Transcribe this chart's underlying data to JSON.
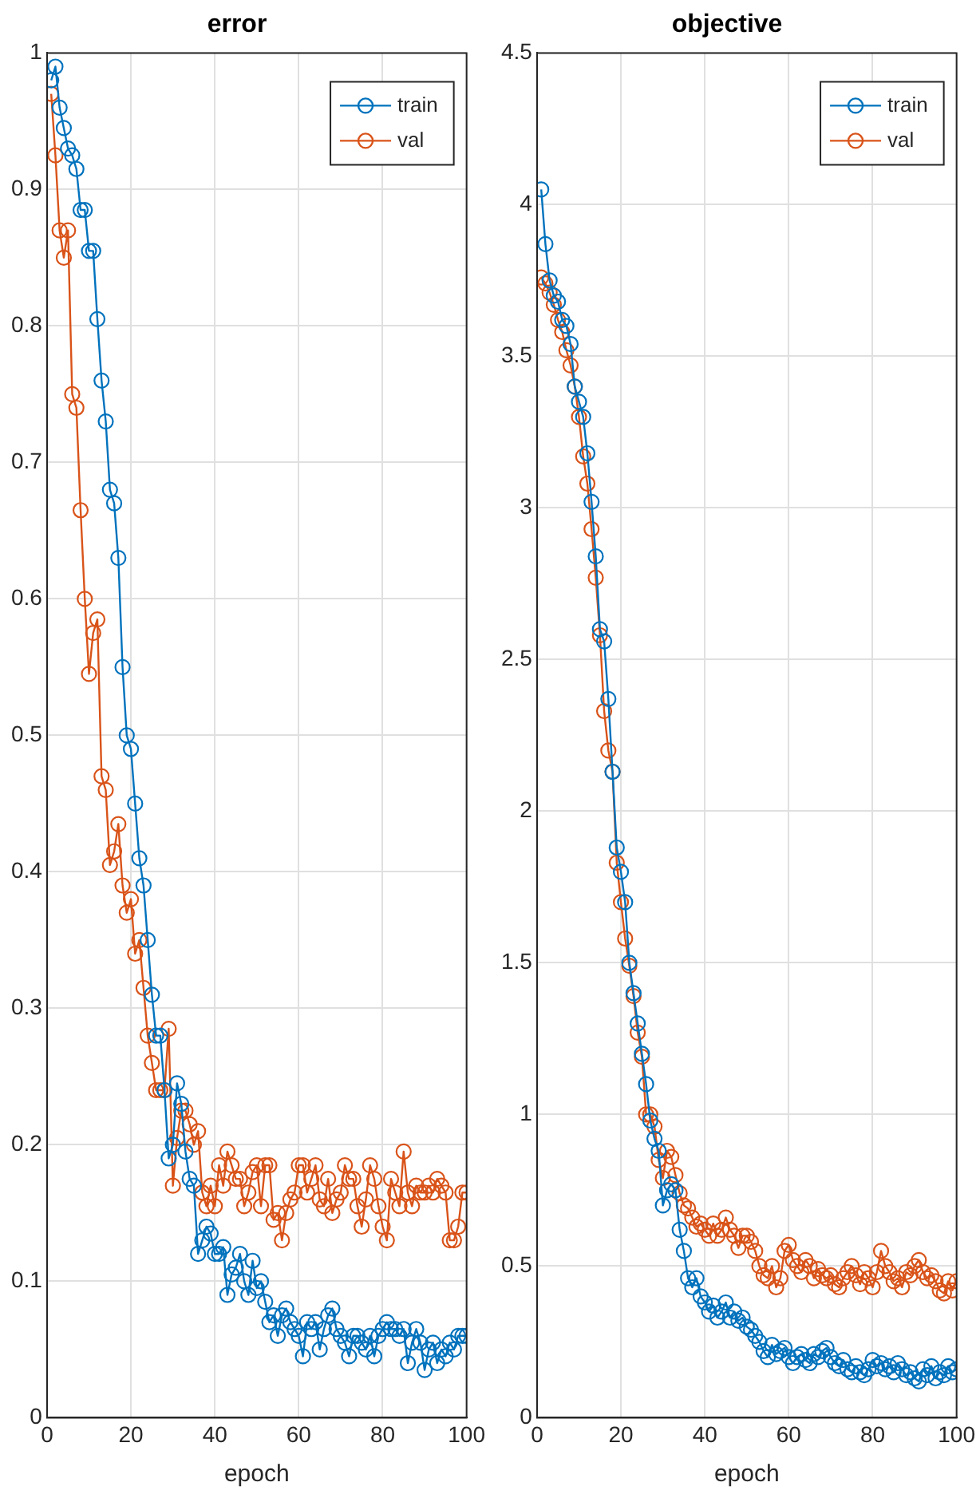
{
  "chart_data": [
    {
      "type": "line",
      "title": "error",
      "xlabel": "epoch",
      "x": [
        1,
        2,
        3,
        4,
        5,
        6,
        7,
        8,
        9,
        10,
        11,
        12,
        13,
        14,
        15,
        16,
        17,
        18,
        19,
        20,
        21,
        22,
        23,
        24,
        25,
        26,
        27,
        28,
        29,
        30,
        31,
        32,
        33,
        34,
        35,
        36,
        37,
        38,
        39,
        40,
        41,
        42,
        43,
        44,
        45,
        46,
        47,
        48,
        49,
        50,
        51,
        52,
        53,
        54,
        55,
        56,
        57,
        58,
        59,
        60,
        61,
        62,
        63,
        64,
        65,
        66,
        67,
        68,
        69,
        70,
        71,
        72,
        73,
        74,
        75,
        76,
        77,
        78,
        79,
        80,
        81,
        82,
        83,
        84,
        85,
        86,
        87,
        88,
        89,
        90,
        91,
        92,
        93,
        94,
        95,
        96,
        97,
        98,
        99,
        100
      ],
      "series": [
        {
          "name": "train",
          "color": "#0072bd",
          "values": [
            0.98,
            0.99,
            0.96,
            0.945,
            0.93,
            0.925,
            0.915,
            0.885,
            0.885,
            0.855,
            0.855,
            0.805,
            0.76,
            0.73,
            0.68,
            0.67,
            0.63,
            0.55,
            0.5,
            0.49,
            0.45,
            0.41,
            0.39,
            0.35,
            0.31,
            0.28,
            0.28,
            0.24,
            0.19,
            0.2,
            0.245,
            0.23,
            0.195,
            0.175,
            0.17,
            0.12,
            0.13,
            0.14,
            0.135,
            0.12,
            0.12,
            0.125,
            0.09,
            0.105,
            0.11,
            0.12,
            0.1,
            0.09,
            0.115,
            0.095,
            0.1,
            0.085,
            0.07,
            0.075,
            0.06,
            0.075,
            0.08,
            0.07,
            0.065,
            0.06,
            0.045,
            0.07,
            0.065,
            0.07,
            0.05,
            0.065,
            0.075,
            0.08,
            0.065,
            0.06,
            0.055,
            0.045,
            0.06,
            0.06,
            0.055,
            0.05,
            0.06,
            0.045,
            0.06,
            0.065,
            0.07,
            0.065,
            0.065,
            0.06,
            0.065,
            0.04,
            0.055,
            0.065,
            0.055,
            0.035,
            0.05,
            0.055,
            0.04,
            0.05,
            0.045,
            0.055,
            0.05,
            0.06,
            0.06,
            0.06
          ]
        },
        {
          "name": "val",
          "color": "#d95319",
          "values": [
            0.97,
            0.925,
            0.87,
            0.85,
            0.87,
            0.75,
            0.74,
            0.665,
            0.6,
            0.545,
            0.575,
            0.585,
            0.47,
            0.46,
            0.405,
            0.415,
            0.435,
            0.39,
            0.37,
            0.38,
            0.34,
            0.35,
            0.315,
            0.28,
            0.26,
            0.24,
            0.24,
            0.24,
            0.285,
            0.17,
            0.205,
            0.225,
            0.225,
            0.215,
            0.2,
            0.21,
            0.165,
            0.155,
            0.17,
            0.155,
            0.185,
            0.17,
            0.195,
            0.185,
            0.175,
            0.175,
            0.155,
            0.165,
            0.18,
            0.185,
            0.155,
            0.185,
            0.185,
            0.145,
            0.15,
            0.13,
            0.15,
            0.16,
            0.165,
            0.185,
            0.185,
            0.165,
            0.175,
            0.185,
            0.16,
            0.155,
            0.175,
            0.15,
            0.16,
            0.165,
            0.185,
            0.175,
            0.175,
            0.155,
            0.14,
            0.16,
            0.185,
            0.175,
            0.155,
            0.14,
            0.13,
            0.175,
            0.165,
            0.155,
            0.195,
            0.165,
            0.155,
            0.17,
            0.165,
            0.165,
            0.17,
            0.165,
            0.175,
            0.17,
            0.165,
            0.13,
            0.13,
            0.14,
            0.165,
            0.165
          ]
        }
      ],
      "xlim": [
        0,
        100
      ],
      "xticks": [
        0,
        20,
        40,
        60,
        80,
        100
      ],
      "ylim": [
        0,
        1
      ],
      "yticks": [
        0,
        0.1,
        0.2,
        0.3,
        0.4,
        0.5,
        0.6,
        0.7,
        0.8,
        0.9,
        1
      ],
      "grid": true,
      "legend": "top right",
      "marker": "circle"
    },
    {
      "type": "line",
      "title": "objective",
      "xlabel": "epoch",
      "x": [
        1,
        2,
        3,
        4,
        5,
        6,
        7,
        8,
        9,
        10,
        11,
        12,
        13,
        14,
        15,
        16,
        17,
        18,
        19,
        20,
        21,
        22,
        23,
        24,
        25,
        26,
        27,
        28,
        29,
        30,
        31,
        32,
        33,
        34,
        35,
        36,
        37,
        38,
        39,
        40,
        41,
        42,
        43,
        44,
        45,
        46,
        47,
        48,
        49,
        50,
        51,
        52,
        53,
        54,
        55,
        56,
        57,
        58,
        59,
        60,
        61,
        62,
        63,
        64,
        65,
        66,
        67,
        68,
        69,
        70,
        71,
        72,
        73,
        74,
        75,
        76,
        77,
        78,
        79,
        80,
        81,
        82,
        83,
        84,
        85,
        86,
        87,
        88,
        89,
        90,
        91,
        92,
        93,
        94,
        95,
        96,
        97,
        98,
        99,
        100
      ],
      "series": [
        {
          "name": "train",
          "color": "#0072bd",
          "values": [
            4.05,
            3.87,
            3.75,
            3.7,
            3.68,
            3.62,
            3.6,
            3.54,
            3.4,
            3.35,
            3.3,
            3.18,
            3.02,
            2.84,
            2.6,
            2.56,
            2.37,
            2.13,
            1.88,
            1.8,
            1.7,
            1.5,
            1.4,
            1.3,
            1.2,
            1.1,
            0.98,
            0.92,
            0.88,
            0.7,
            0.75,
            0.77,
            0.75,
            0.62,
            0.55,
            0.46,
            0.43,
            0.46,
            0.4,
            0.38,
            0.35,
            0.37,
            0.33,
            0.35,
            0.38,
            0.33,
            0.35,
            0.32,
            0.33,
            0.3,
            0.29,
            0.27,
            0.25,
            0.22,
            0.2,
            0.24,
            0.21,
            0.22,
            0.23,
            0.2,
            0.18,
            0.2,
            0.21,
            0.19,
            0.18,
            0.21,
            0.2,
            0.22,
            0.23,
            0.2,
            0.18,
            0.17,
            0.19,
            0.16,
            0.15,
            0.17,
            0.15,
            0.14,
            0.16,
            0.19,
            0.17,
            0.18,
            0.16,
            0.17,
            0.15,
            0.18,
            0.16,
            0.14,
            0.15,
            0.13,
            0.12,
            0.16,
            0.14,
            0.17,
            0.13,
            0.15,
            0.14,
            0.17,
            0.15,
            0.16
          ]
        },
        {
          "name": "val",
          "color": "#d95319",
          "values": [
            3.76,
            3.74,
            3.71,
            3.67,
            3.62,
            3.58,
            3.52,
            3.47,
            3.4,
            3.3,
            3.17,
            3.08,
            2.93,
            2.77,
            2.58,
            2.33,
            2.2,
            2.13,
            1.83,
            1.7,
            1.58,
            1.49,
            1.39,
            1.27,
            1.19,
            1.0,
            1.0,
            0.96,
            0.85,
            0.79,
            0.88,
            0.86,
            0.8,
            0.74,
            0.7,
            0.69,
            0.66,
            0.63,
            0.64,
            0.62,
            0.6,
            0.64,
            0.6,
            0.62,
            0.66,
            0.62,
            0.6,
            0.56,
            0.6,
            0.6,
            0.58,
            0.55,
            0.5,
            0.47,
            0.46,
            0.5,
            0.43,
            0.46,
            0.55,
            0.57,
            0.52,
            0.5,
            0.48,
            0.52,
            0.5,
            0.46,
            0.49,
            0.47,
            0.46,
            0.47,
            0.44,
            0.43,
            0.46,
            0.48,
            0.5,
            0.47,
            0.44,
            0.48,
            0.46,
            0.43,
            0.48,
            0.55,
            0.5,
            0.48,
            0.45,
            0.46,
            0.43,
            0.48,
            0.47,
            0.5,
            0.52,
            0.48,
            0.46,
            0.47,
            0.45,
            0.42,
            0.41,
            0.45,
            0.42,
            0.45
          ]
        }
      ],
      "xlim": [
        0,
        100
      ],
      "xticks": [
        0,
        20,
        40,
        60,
        80,
        100
      ],
      "ylim": [
        0,
        4.5
      ],
      "yticks": [
        0,
        0.5,
        1,
        1.5,
        2,
        2.5,
        3,
        3.5,
        4,
        4.5
      ],
      "grid": true,
      "legend": "top right",
      "marker": "circle"
    }
  ]
}
